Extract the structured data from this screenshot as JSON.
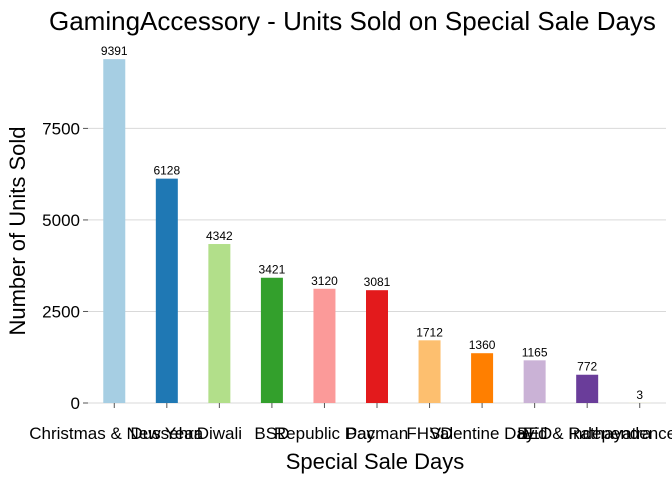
{
  "chart_data": {
    "type": "bar",
    "title": "GamingAccessory - Units Sold on Special Sale Days",
    "xlabel": "Special Sale Days",
    "ylabel": "Number of Units Sold",
    "categories": [
      "Christmas & New Year",
      "Dussehra",
      "Diwali",
      "BSD",
      "Republic Day",
      "Pacman",
      "FHSD",
      "Valentine Day",
      "BED",
      "Eid & Rathayatra",
      "Independence Day"
    ],
    "values": [
      9391,
      6128,
      4342,
      3421,
      3120,
      3081,
      1712,
      1360,
      1165,
      772,
      3
    ],
    "colors": [
      "#a6cee3",
      "#1f78b4",
      "#b2df8a",
      "#33a02c",
      "#fb9a99",
      "#e31a1c",
      "#fdbf6f",
      "#ff7f00",
      "#cab2d6",
      "#6a3d9a",
      "#ffff99"
    ],
    "yticks": [
      0,
      2500,
      5000,
      7500
    ],
    "ytick_labels": [
      "0",
      "2500",
      "5000",
      "7500"
    ],
    "ylim": [
      0,
      9860
    ],
    "grid": true,
    "legend": "none"
  }
}
